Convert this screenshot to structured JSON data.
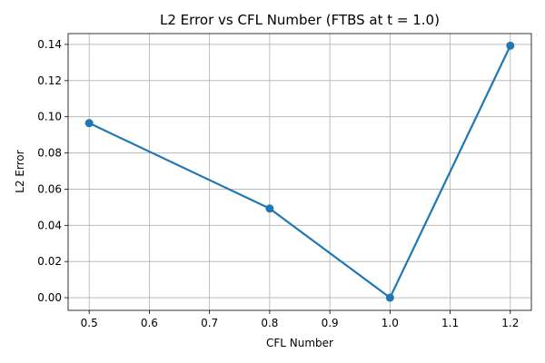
{
  "chart_data": {
    "type": "line",
    "title": "L2 Error vs CFL Number (FTBS at t = 1.0)",
    "xlabel": "CFL Number",
    "ylabel": "L2 Error",
    "xlim": [
      0.465,
      1.235
    ],
    "ylim": [
      -0.007,
      0.146
    ],
    "xticks": [
      0.5,
      0.6,
      0.7,
      0.8,
      0.9,
      1.0,
      1.1,
      1.2
    ],
    "yticks": [
      0.0,
      0.02,
      0.04,
      0.06,
      0.08,
      0.1,
      0.12,
      0.14
    ],
    "xtick_labels": [
      "0.5",
      "0.6",
      "0.7",
      "0.8",
      "0.9",
      "1.0",
      "1.1",
      "1.2"
    ],
    "ytick_labels": [
      "0.00",
      "0.02",
      "0.04",
      "0.06",
      "0.08",
      "0.10",
      "0.12",
      "0.14"
    ],
    "grid": true,
    "series": [
      {
        "x": [
          0.5,
          0.8,
          1.0,
          1.2
        ],
        "y": [
          0.0965,
          0.0493,
          0.0,
          0.1393
        ],
        "color": "#1f77b4",
        "marker": "circle"
      }
    ]
  }
}
